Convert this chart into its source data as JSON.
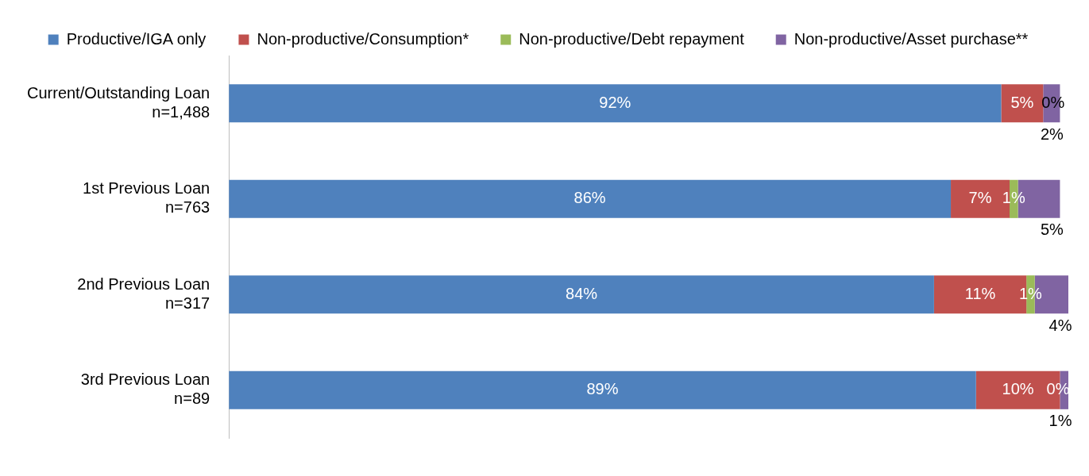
{
  "chart_data": {
    "type": "bar",
    "orientation": "horizontal",
    "stacked": true,
    "categories": [
      "Current/Outstanding Loan\nn=1,488",
      "1st Previous Loan\nn=763",
      "2nd Previous Loan\nn=317",
      "3rd Previous Loan\nn=89"
    ],
    "series": [
      {
        "name": "Productive/IGA only",
        "color": "#4f81bd",
        "values": [
          92,
          86,
          84,
          89
        ],
        "value_labels": [
          "92%",
          "86%",
          "84%",
          "89%"
        ]
      },
      {
        "name": "Non-productive/Consumption*",
        "color": "#c0504d",
        "values": [
          5,
          7,
          11,
          10
        ],
        "value_labels": [
          "5%",
          "7%",
          "11%",
          "10%"
        ]
      },
      {
        "name": "Non-productive/Debt repayment",
        "color": "#9bbb59",
        "values": [
          0,
          1,
          1,
          0
        ],
        "value_labels": [
          "0%",
          "1%",
          "1%",
          "0%"
        ]
      },
      {
        "name": "Non-productive/Asset purchase**",
        "color": "#8064a2",
        "values": [
          2,
          5,
          4,
          1
        ],
        "value_labels": [
          "2%",
          "5%",
          "4%",
          "1%"
        ]
      }
    ],
    "tick_labels": "y",
    "legend": "top"
  }
}
